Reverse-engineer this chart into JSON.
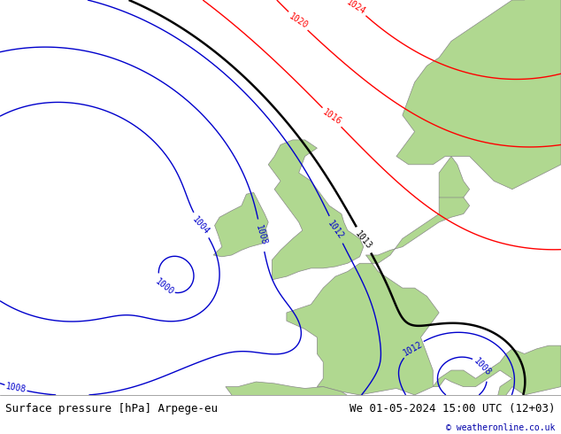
{
  "title_left": "Surface pressure [hPa] Arpege-eu",
  "title_right": "We 01-05-2024 15:00 UTC (12+03)",
  "copyright": "© weatheronline.co.uk",
  "sea_color": "#d0d0d8",
  "land_color": "#b0d890",
  "footer_fontsize": 9,
  "lon_min": -28,
  "lon_max": 18,
  "lat_min": 43,
  "lat_max": 67
}
